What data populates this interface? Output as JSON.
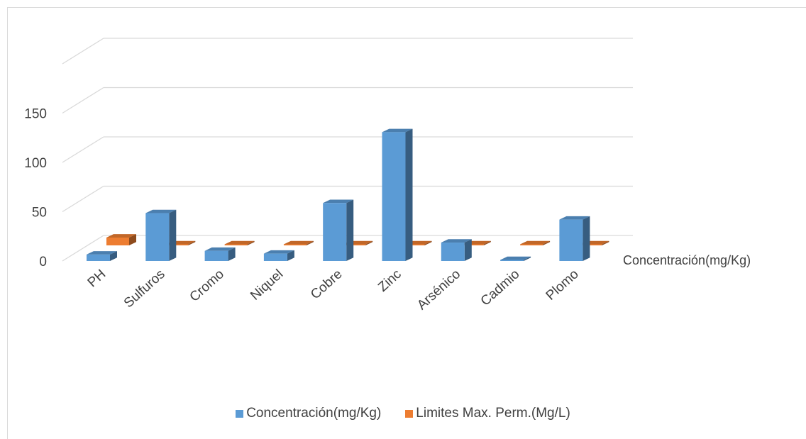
{
  "chart_data": {
    "type": "bar",
    "categories": [
      "PH",
      "Sulfuros",
      "Cromo",
      "Niquel",
      "Cobre",
      "Zinc",
      "Arsénico",
      "Cadmio",
      "Plomo"
    ],
    "series": [
      {
        "name": "Concentración(mg/Kg)",
        "values": [
          7,
          52,
          11,
          8,
          63,
          140,
          20,
          0.5,
          45
        ],
        "color": "#5b9bd5"
      },
      {
        "name": "Limites Max. Perm.(Mg/L)",
        "values": [
          8.5,
          1,
          1,
          1,
          1,
          1,
          1,
          1,
          1
        ],
        "color": "#ed7d31"
      }
    ],
    "y_ticks": [
      "0",
      "50",
      "100",
      "150"
    ],
    "ylim": [
      0,
      150
    ],
    "depth_axis_label": "Concentración(mg/Kg)",
    "grid": true,
    "legend_position": "bottom"
  }
}
